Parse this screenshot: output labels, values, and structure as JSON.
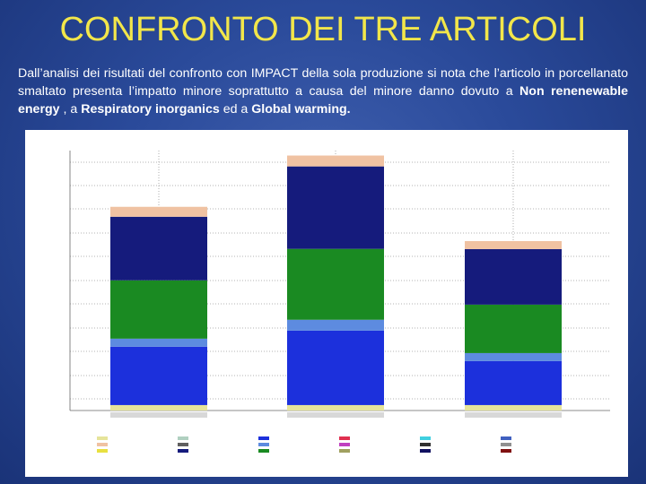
{
  "header": {
    "title": "CONFRONTO DEI TRE ARTICOLI"
  },
  "paragraph": [
    {
      "text": "Dall’analisi dei risultati del confronto con IMPACT della sola produzione si nota che l’articolo in porcellanato smaltato presenta l’impatto minore soprattutto a causa del minore danno dovuto a "
    },
    {
      "text": "Non renenewable energy",
      "bold": true
    },
    {
      "text": " , a "
    },
    {
      "text": "Respiratory inorganics",
      "bold": true
    },
    {
      "text": " ed a "
    },
    {
      "text": "Global warming.",
      "bold": true
    }
  ],
  "chart_data": {
    "type": "stacked_bar",
    "categories": [
      null,
      null,
      null
    ],
    "ylim": [
      0,
      1.1
    ],
    "series": [
      {
        "color": "#e6e49a",
        "values": [
          0.023,
          0.023,
          0.023
        ]
      },
      {
        "color": "#1c30dc",
        "values": [
          0.247,
          0.315,
          0.186
        ]
      },
      {
        "color": "#5d8be0",
        "values": [
          0.034,
          0.046,
          0.034
        ]
      },
      {
        "color": "#1a8a22",
        "values": [
          0.247,
          0.3,
          0.205
        ]
      },
      {
        "color": "#151b7c",
        "values": [
          0.269,
          0.349,
          0.235
        ]
      },
      {
        "color": "#f0c2a2",
        "values": [
          0.042,
          0.046,
          0.034
        ]
      }
    ]
  }
}
